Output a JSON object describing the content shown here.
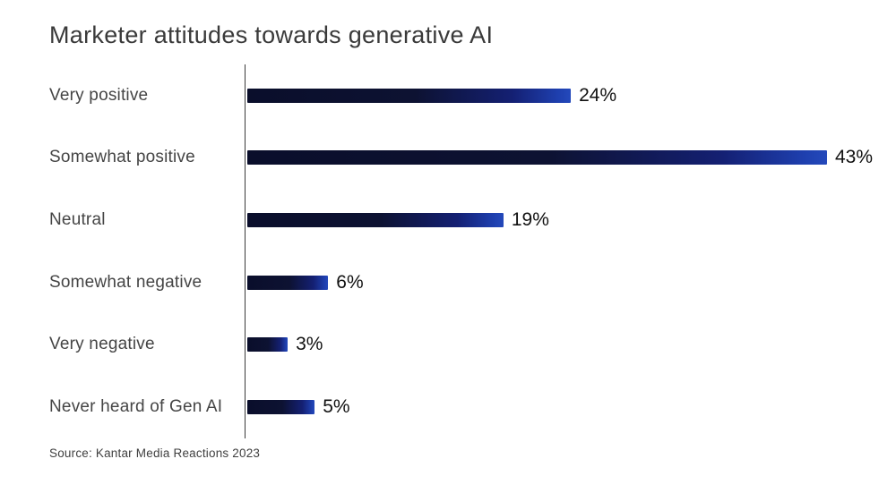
{
  "title": "Marketer attitudes towards generative AI",
  "source": "Source: Kantar Media Reactions 2023",
  "colors": {
    "bar_gradient_start": "#0a0e2b",
    "bar_gradient_mid": "#0d1232",
    "bar_gradient_end": "#1e3fae",
    "axis": "#3a3a3a",
    "title_text": "#3a3a3a",
    "category_text": "#454545",
    "value_text": "#111111"
  },
  "chart_data": {
    "type": "bar",
    "orientation": "horizontal",
    "title": "Marketer attitudes towards generative AI",
    "categories": [
      "Very positive",
      "Somewhat positive",
      "Neutral",
      "Somewhat negative",
      "Very negative",
      "Never heard of Gen AI"
    ],
    "values": [
      24,
      43,
      19,
      6,
      3,
      5
    ],
    "value_labels": [
      "24%",
      "43%",
      "19%",
      "6%",
      "3%",
      "5%"
    ],
    "xlabel": "",
    "ylabel": "",
    "xlim": [
      0,
      43
    ],
    "grid": false,
    "legend": false,
    "bar_style": "gradient dark navy to royal blue, left to right",
    "source": "Source: Kantar Media Reactions 2023"
  }
}
